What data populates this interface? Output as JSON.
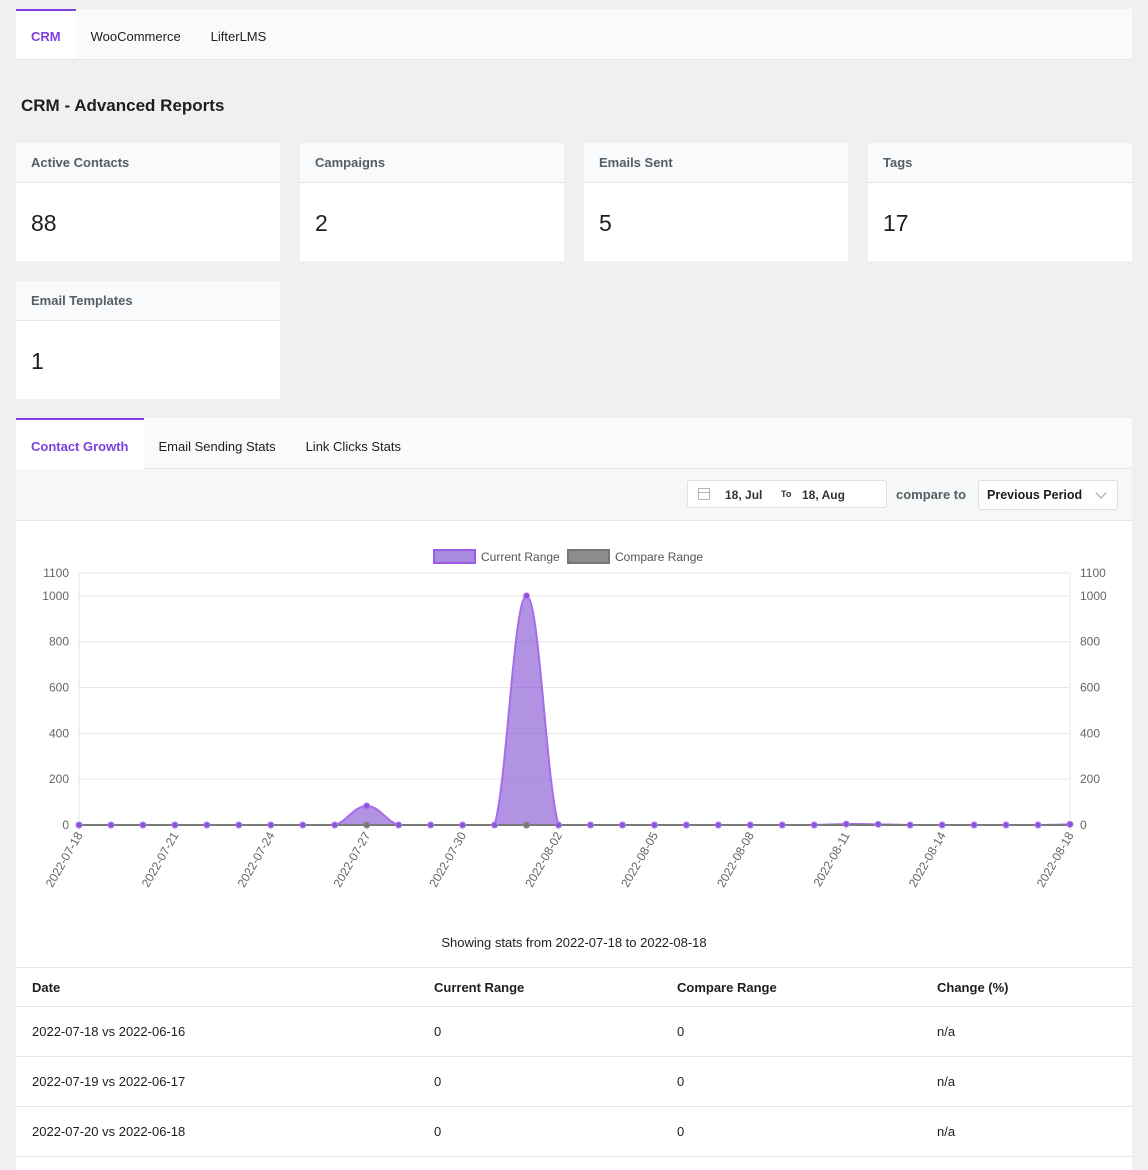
{
  "top_tabs": [
    {
      "label": "CRM",
      "active": true
    },
    {
      "label": "WooCommerce",
      "active": false
    },
    {
      "label": "LifterLMS",
      "active": false
    }
  ],
  "page_title": "CRM - Advanced Reports",
  "cards": [
    {
      "title": "Active Contacts",
      "value": "88"
    },
    {
      "title": "Campaigns",
      "value": "2"
    },
    {
      "title": "Emails Sent",
      "value": "5"
    },
    {
      "title": "Tags",
      "value": "17"
    },
    {
      "title": "Email Templates",
      "value": "1"
    }
  ],
  "sub_tabs": [
    {
      "label": "Contact Growth",
      "active": true
    },
    {
      "label": "Email Sending Stats",
      "active": false
    },
    {
      "label": "Link Clicks Stats",
      "active": false
    }
  ],
  "filters": {
    "date_start": "18, Jul",
    "date_separator": "To",
    "date_end": "18, Aug",
    "compare_label": "compare to",
    "compare_value": "Previous Period"
  },
  "chart_data": {
    "type": "area",
    "legend": {
      "placement": "top",
      "entries": [
        "Current Range",
        "Compare Range"
      ]
    },
    "y_ticks": [
      "1100",
      "1000",
      "800",
      "600",
      "400",
      "200",
      "0"
    ],
    "ylim": [
      0,
      1100
    ],
    "x": [
      "2022-07-18",
      "2022-07-19",
      "2022-07-20",
      "2022-07-21",
      "2022-07-22",
      "2022-07-23",
      "2022-07-24",
      "2022-07-25",
      "2022-07-26",
      "2022-07-27",
      "2022-07-28",
      "2022-07-29",
      "2022-07-30",
      "2022-07-31",
      "2022-08-01",
      "2022-08-02",
      "2022-08-03",
      "2022-08-04",
      "2022-08-05",
      "2022-08-06",
      "2022-08-07",
      "2022-08-08",
      "2022-08-09",
      "2022-08-10",
      "2022-08-11",
      "2022-08-12",
      "2022-08-13",
      "2022-08-14",
      "2022-08-15",
      "2022-08-16",
      "2022-08-17",
      "2022-08-18"
    ],
    "x_tick_labels": [
      "2022-07-18",
      "2022-07-21",
      "2022-07-24",
      "2022-07-27",
      "2022-07-30",
      "2022-08-02",
      "2022-08-05",
      "2022-08-08",
      "2022-08-11",
      "2022-08-14",
      "2022-08-18"
    ],
    "series": [
      {
        "name": "Current Range",
        "color": "#9b6dd7",
        "values": [
          0,
          0,
          0,
          0,
          0,
          0,
          0,
          0,
          0,
          83,
          0,
          0,
          0,
          0,
          1000,
          0,
          0,
          0,
          0,
          0,
          0,
          0,
          0,
          0,
          4,
          3,
          0,
          0,
          0,
          0,
          0,
          3
        ]
      },
      {
        "name": "Compare Range",
        "color": "#7a7a7a",
        "values": [
          0,
          0,
          0,
          0,
          0,
          0,
          0,
          0,
          0,
          0,
          0,
          0,
          0,
          0,
          0,
          0,
          0,
          0,
          0,
          0,
          0,
          0,
          0,
          0,
          0,
          0,
          0,
          0,
          0,
          0,
          0,
          0
        ]
      }
    ]
  },
  "showing_text": "Showing stats from 2022-07-18 to 2022-08-18",
  "table": {
    "headers": [
      "Date",
      "Current Range",
      "Compare Range",
      "Change (%)"
    ],
    "rows": [
      [
        "2022-07-18 vs 2022-06-16",
        "0",
        "0",
        "n/a"
      ],
      [
        "2022-07-19 vs 2022-06-17",
        "0",
        "0",
        "n/a"
      ],
      [
        "2022-07-20 vs 2022-06-18",
        "0",
        "0",
        "n/a"
      ],
      [
        "",
        "",
        "",
        ""
      ]
    ]
  }
}
